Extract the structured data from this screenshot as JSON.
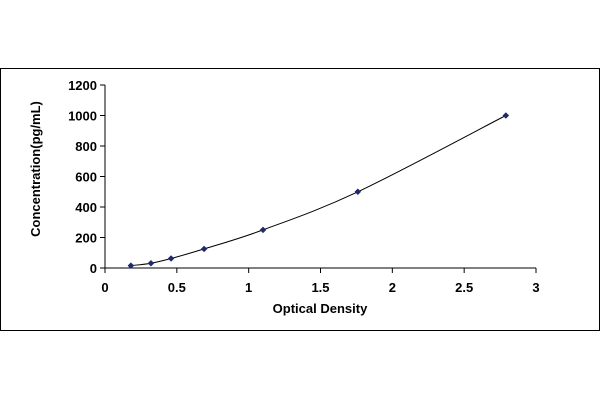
{
  "chart_data": {
    "type": "scatter",
    "title": "",
    "xlabel": "Optical Density",
    "ylabel": "Concentration(pg/mL)",
    "xlim": [
      0,
      3
    ],
    "ylim": [
      0,
      1200
    ],
    "x_ticks": [
      "0",
      "0.5",
      "1",
      "1.5",
      "2",
      "2.5",
      "3"
    ],
    "y_ticks": [
      "0",
      "200",
      "400",
      "600",
      "800",
      "1000",
      "1200"
    ],
    "x": [
      0.18,
      0.32,
      0.46,
      0.69,
      1.1,
      1.76,
      2.79
    ],
    "y": [
      15.6,
      31.2,
      62.5,
      125,
      250,
      500,
      1000
    ],
    "trendline": true,
    "legend": "none",
    "grid": false,
    "colors": {
      "marker": "#1f2a6b",
      "line": "#000000",
      "frame": "#000000"
    }
  }
}
